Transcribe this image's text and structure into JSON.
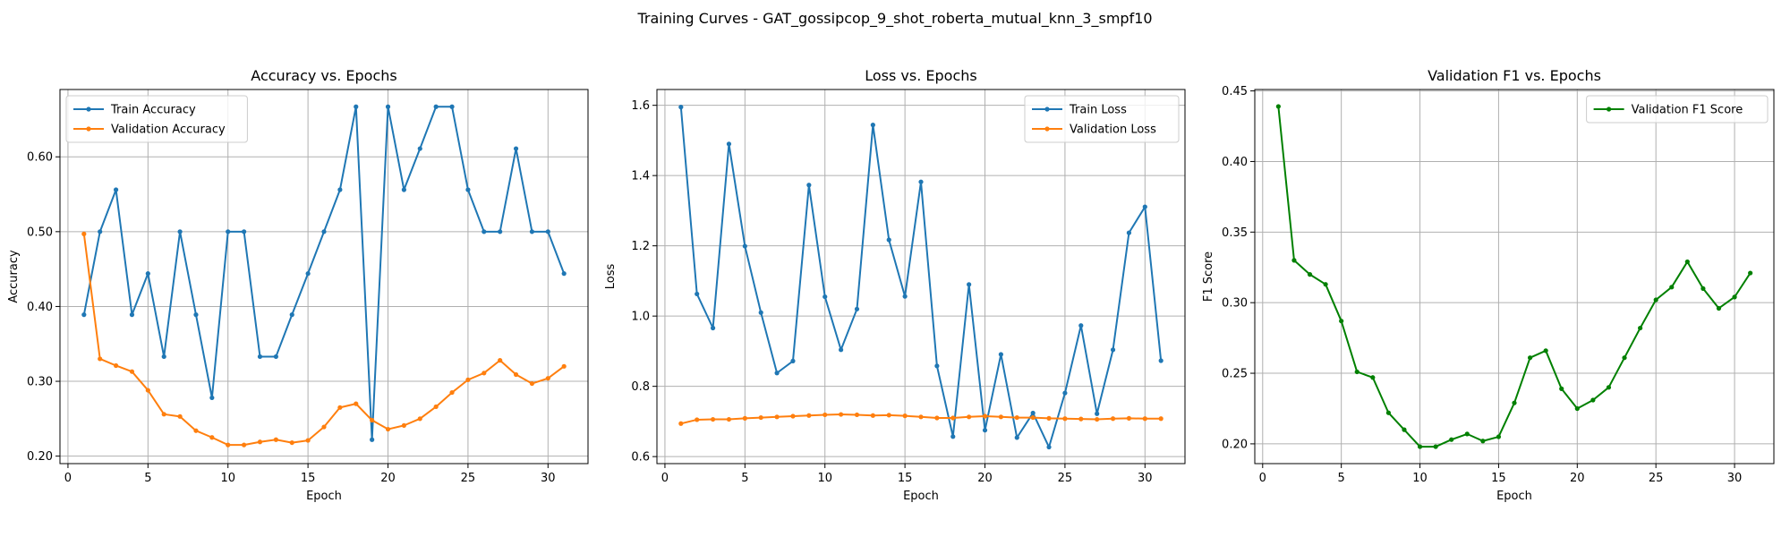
{
  "suptitle": "Training Curves - GAT_gossipcop_9_shot_roberta_mutual_knn_3_smpf10",
  "colors": {
    "train": "#1f77b4",
    "validation": "#ff7f0e",
    "f1": "#008000"
  },
  "chart_data": [
    {
      "type": "line",
      "title": "Accuracy vs. Epochs",
      "xlabel": "Epoch",
      "ylabel": "Accuracy",
      "xlim": [
        -0.5,
        32.5
      ],
      "ylim": [
        0.19,
        0.69
      ],
      "xticks": [
        0,
        5,
        10,
        15,
        20,
        25,
        30
      ],
      "yticks": [
        0.2,
        0.3,
        0.4,
        0.5,
        0.6
      ],
      "grid": true,
      "legend_position": "upper-left",
      "x": [
        1,
        2,
        3,
        4,
        5,
        6,
        7,
        8,
        9,
        10,
        11,
        12,
        13,
        14,
        15,
        16,
        17,
        18,
        19,
        20,
        21,
        22,
        23,
        24,
        25,
        26,
        27,
        28,
        29,
        30,
        31
      ],
      "series": [
        {
          "name": "Train Accuracy",
          "color": "#1f77b4",
          "values": [
            0.389,
            0.5,
            0.556,
            0.389,
            0.444,
            0.333,
            0.5,
            0.389,
            0.278,
            0.5,
            0.5,
            0.333,
            0.333,
            0.389,
            0.444,
            0.5,
            0.556,
            0.667,
            0.222,
            0.667,
            0.556,
            0.611,
            0.667,
            0.667,
            0.556,
            0.5,
            0.5,
            0.611,
            0.5,
            0.5,
            0.444
          ]
        },
        {
          "name": "Validation Accuracy",
          "color": "#ff7f0e",
          "values": [
            0.497,
            0.33,
            0.321,
            0.313,
            0.288,
            0.256,
            0.253,
            0.234,
            0.225,
            0.215,
            0.215,
            0.219,
            0.222,
            0.218,
            0.221,
            0.239,
            0.265,
            0.27,
            0.248,
            0.236,
            0.241,
            0.25,
            0.266,
            0.285,
            0.302,
            0.311,
            0.328,
            0.309,
            0.297,
            0.304,
            0.32
          ]
        }
      ]
    },
    {
      "type": "line",
      "title": "Loss vs. Epochs",
      "xlabel": "Epoch",
      "ylabel": "Loss",
      "xlim": [
        -0.5,
        32.5
      ],
      "ylim": [
        0.58,
        1.645
      ],
      "xticks": [
        0,
        5,
        10,
        15,
        20,
        25,
        30
      ],
      "yticks": [
        0.6,
        0.8,
        1.0,
        1.2,
        1.4,
        1.6
      ],
      "grid": true,
      "legend_position": "upper-right",
      "x": [
        1,
        2,
        3,
        4,
        5,
        6,
        7,
        8,
        9,
        10,
        11,
        12,
        13,
        14,
        15,
        16,
        17,
        18,
        19,
        20,
        21,
        22,
        23,
        24,
        25,
        26,
        27,
        28,
        29,
        30,
        31
      ],
      "series": [
        {
          "name": "Train Loss",
          "color": "#1f77b4",
          "values": [
            1.595,
            1.063,
            0.966,
            1.49,
            1.199,
            1.01,
            0.838,
            0.872,
            1.373,
            1.055,
            0.904,
            1.02,
            1.544,
            1.217,
            1.056,
            1.382,
            0.858,
            0.657,
            1.09,
            0.675,
            0.891,
            0.654,
            0.724,
            0.627,
            0.781,
            0.973,
            0.722,
            0.904,
            1.237,
            1.311,
            0.873
          ]
        },
        {
          "name": "Validation Loss",
          "color": "#ff7f0e",
          "values": [
            0.694,
            0.705,
            0.706,
            0.706,
            0.709,
            0.711,
            0.713,
            0.715,
            0.717,
            0.719,
            0.72,
            0.719,
            0.717,
            0.718,
            0.716,
            0.713,
            0.71,
            0.71,
            0.713,
            0.715,
            0.713,
            0.711,
            0.711,
            0.709,
            0.708,
            0.707,
            0.706,
            0.708,
            0.709,
            0.708,
            0.708
          ]
        }
      ]
    },
    {
      "type": "line",
      "title": "Validation F1 vs. Epochs",
      "xlabel": "Epoch",
      "ylabel": "F1 Score",
      "xlim": [
        -0.5,
        32.5
      ],
      "ylim": [
        0.186,
        0.451
      ],
      "xticks": [
        0,
        5,
        10,
        15,
        20,
        25,
        30
      ],
      "yticks": [
        0.2,
        0.25,
        0.3,
        0.35,
        0.4,
        0.45
      ],
      "grid": true,
      "legend_position": "upper-right",
      "x": [
        1,
        2,
        3,
        4,
        5,
        6,
        7,
        8,
        9,
        10,
        11,
        12,
        13,
        14,
        15,
        16,
        17,
        18,
        19,
        20,
        21,
        22,
        23,
        24,
        25,
        26,
        27,
        28,
        29,
        30,
        31
      ],
      "series": [
        {
          "name": "Validation F1 Score",
          "color": "#008000",
          "values": [
            0.439,
            0.33,
            0.32,
            0.313,
            0.287,
            0.251,
            0.247,
            0.222,
            0.21,
            0.198,
            0.198,
            0.203,
            0.207,
            0.202,
            0.205,
            0.229,
            0.261,
            0.266,
            0.239,
            0.225,
            0.231,
            0.24,
            0.261,
            0.282,
            0.302,
            0.311,
            0.329,
            0.31,
            0.296,
            0.304,
            0.321
          ]
        }
      ]
    }
  ]
}
